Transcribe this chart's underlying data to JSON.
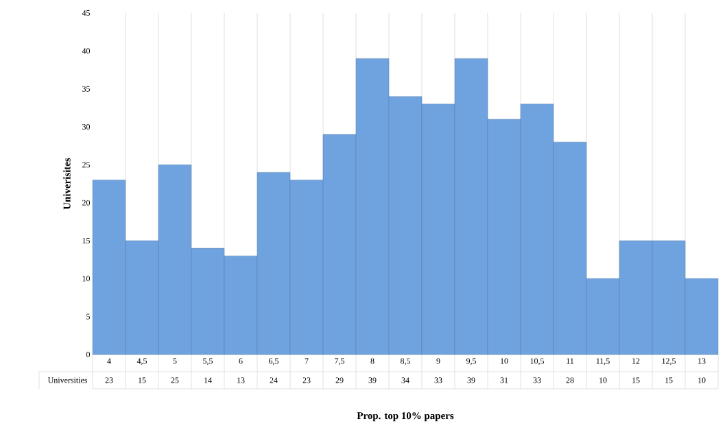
{
  "chart_data": {
    "type": "bar",
    "xlabel": "Prop. top 10% papers",
    "ylabel": "Univerisites",
    "categories": [
      "4",
      "4,5",
      "5",
      "5,5",
      "6",
      "6,5",
      "7",
      "7,5",
      "8",
      "8,5",
      "9",
      "9,5",
      "10",
      "10,5",
      "11",
      "11,5",
      "12",
      "12,5",
      "13"
    ],
    "series": [
      {
        "name": "Universities",
        "color": "#6fa3e0",
        "values": [
          23,
          15,
          25,
          14,
          13,
          24,
          23,
          29,
          39,
          34,
          33,
          39,
          31,
          33,
          28,
          10,
          15,
          15,
          10
        ]
      }
    ],
    "ylim": [
      0,
      45
    ],
    "yticks": [
      0,
      5,
      10,
      15,
      20,
      25,
      30,
      35,
      40,
      45
    ],
    "grid": "x",
    "data_labels": true
  }
}
